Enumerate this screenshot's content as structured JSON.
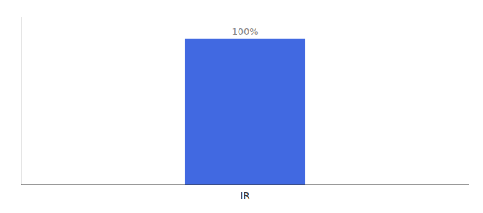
{
  "chart_data": {
    "type": "bar",
    "categories": [
      "IR"
    ],
    "values": [
      100
    ],
    "value_labels": [
      "100%"
    ],
    "color": "#4169E1",
    "ylim": [
      0,
      115
    ],
    "grid": false,
    "data_labels": true,
    "tick_labels": "x"
  }
}
